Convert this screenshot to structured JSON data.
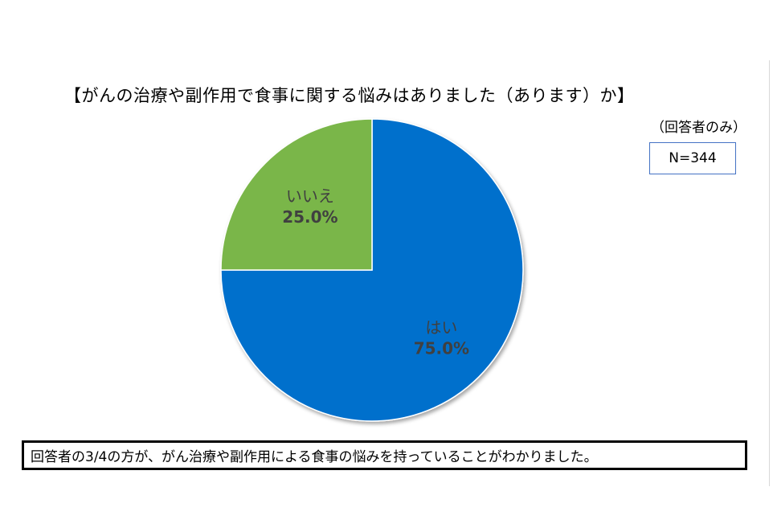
{
  "chart_data": {
    "type": "pie",
    "title": "【がんの治療や副作用で食事に関する悩みはありました（あります）か】",
    "subtitle": "（回答者のみ）",
    "sample_size": "N=344",
    "slices": [
      {
        "label": "はい",
        "value": 75.0,
        "value_label": "75.0%",
        "color": "#0070cc"
      },
      {
        "label": "いいえ",
        "value": 25.0,
        "value_label": "25.0%",
        "color": "#7ab648"
      }
    ]
  },
  "summary": "回答者の3/4の方が、がん治療や副作用による食事の悩みを持っていることがわかりました。"
}
